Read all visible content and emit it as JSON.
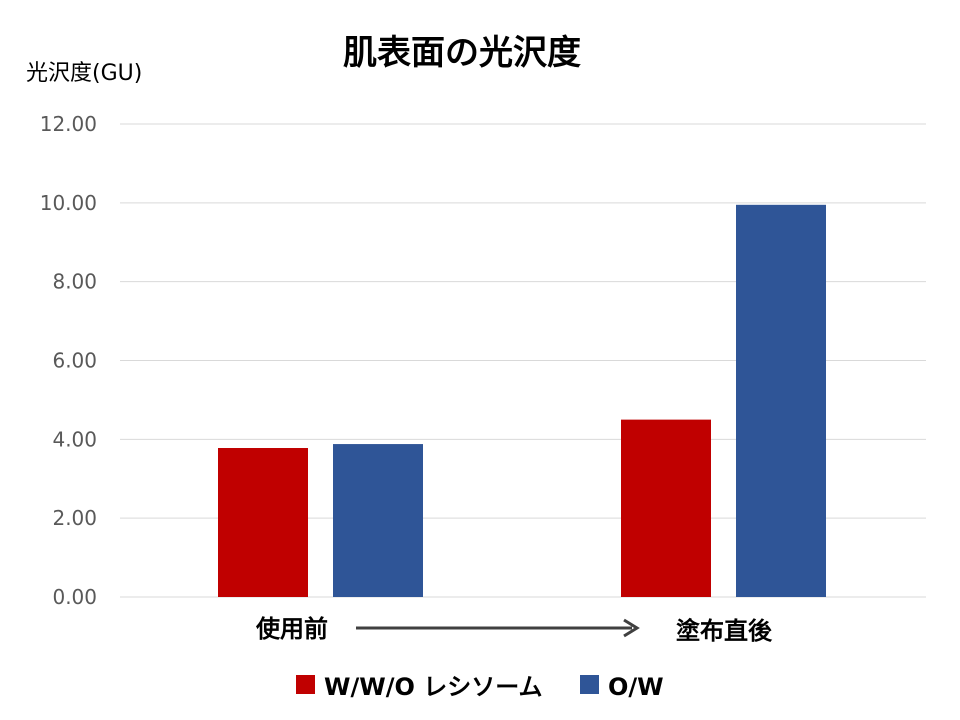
{
  "chart_data": {
    "type": "bar",
    "title": "肌表面の光沢度",
    "ylabel": "光沢度(GU)",
    "xlabel": "",
    "categories": [
      "使用前",
      "塗布直後"
    ],
    "series": [
      {
        "name": "W/W/O レシソーム",
        "color": "#c00000",
        "values": [
          3.78,
          4.5
        ]
      },
      {
        "name": "O/W",
        "color": "#2f5597",
        "values": [
          3.88,
          9.95
        ]
      }
    ],
    "ylim": [
      0,
      12
    ],
    "yticks": [
      "0.00",
      "2.00",
      "4.00",
      "6.00",
      "8.00",
      "10.00",
      "12.00"
    ],
    "grid": true,
    "legend_position": "bottom",
    "arrow_between_categories": true,
    "arrow_color": "#404040"
  }
}
